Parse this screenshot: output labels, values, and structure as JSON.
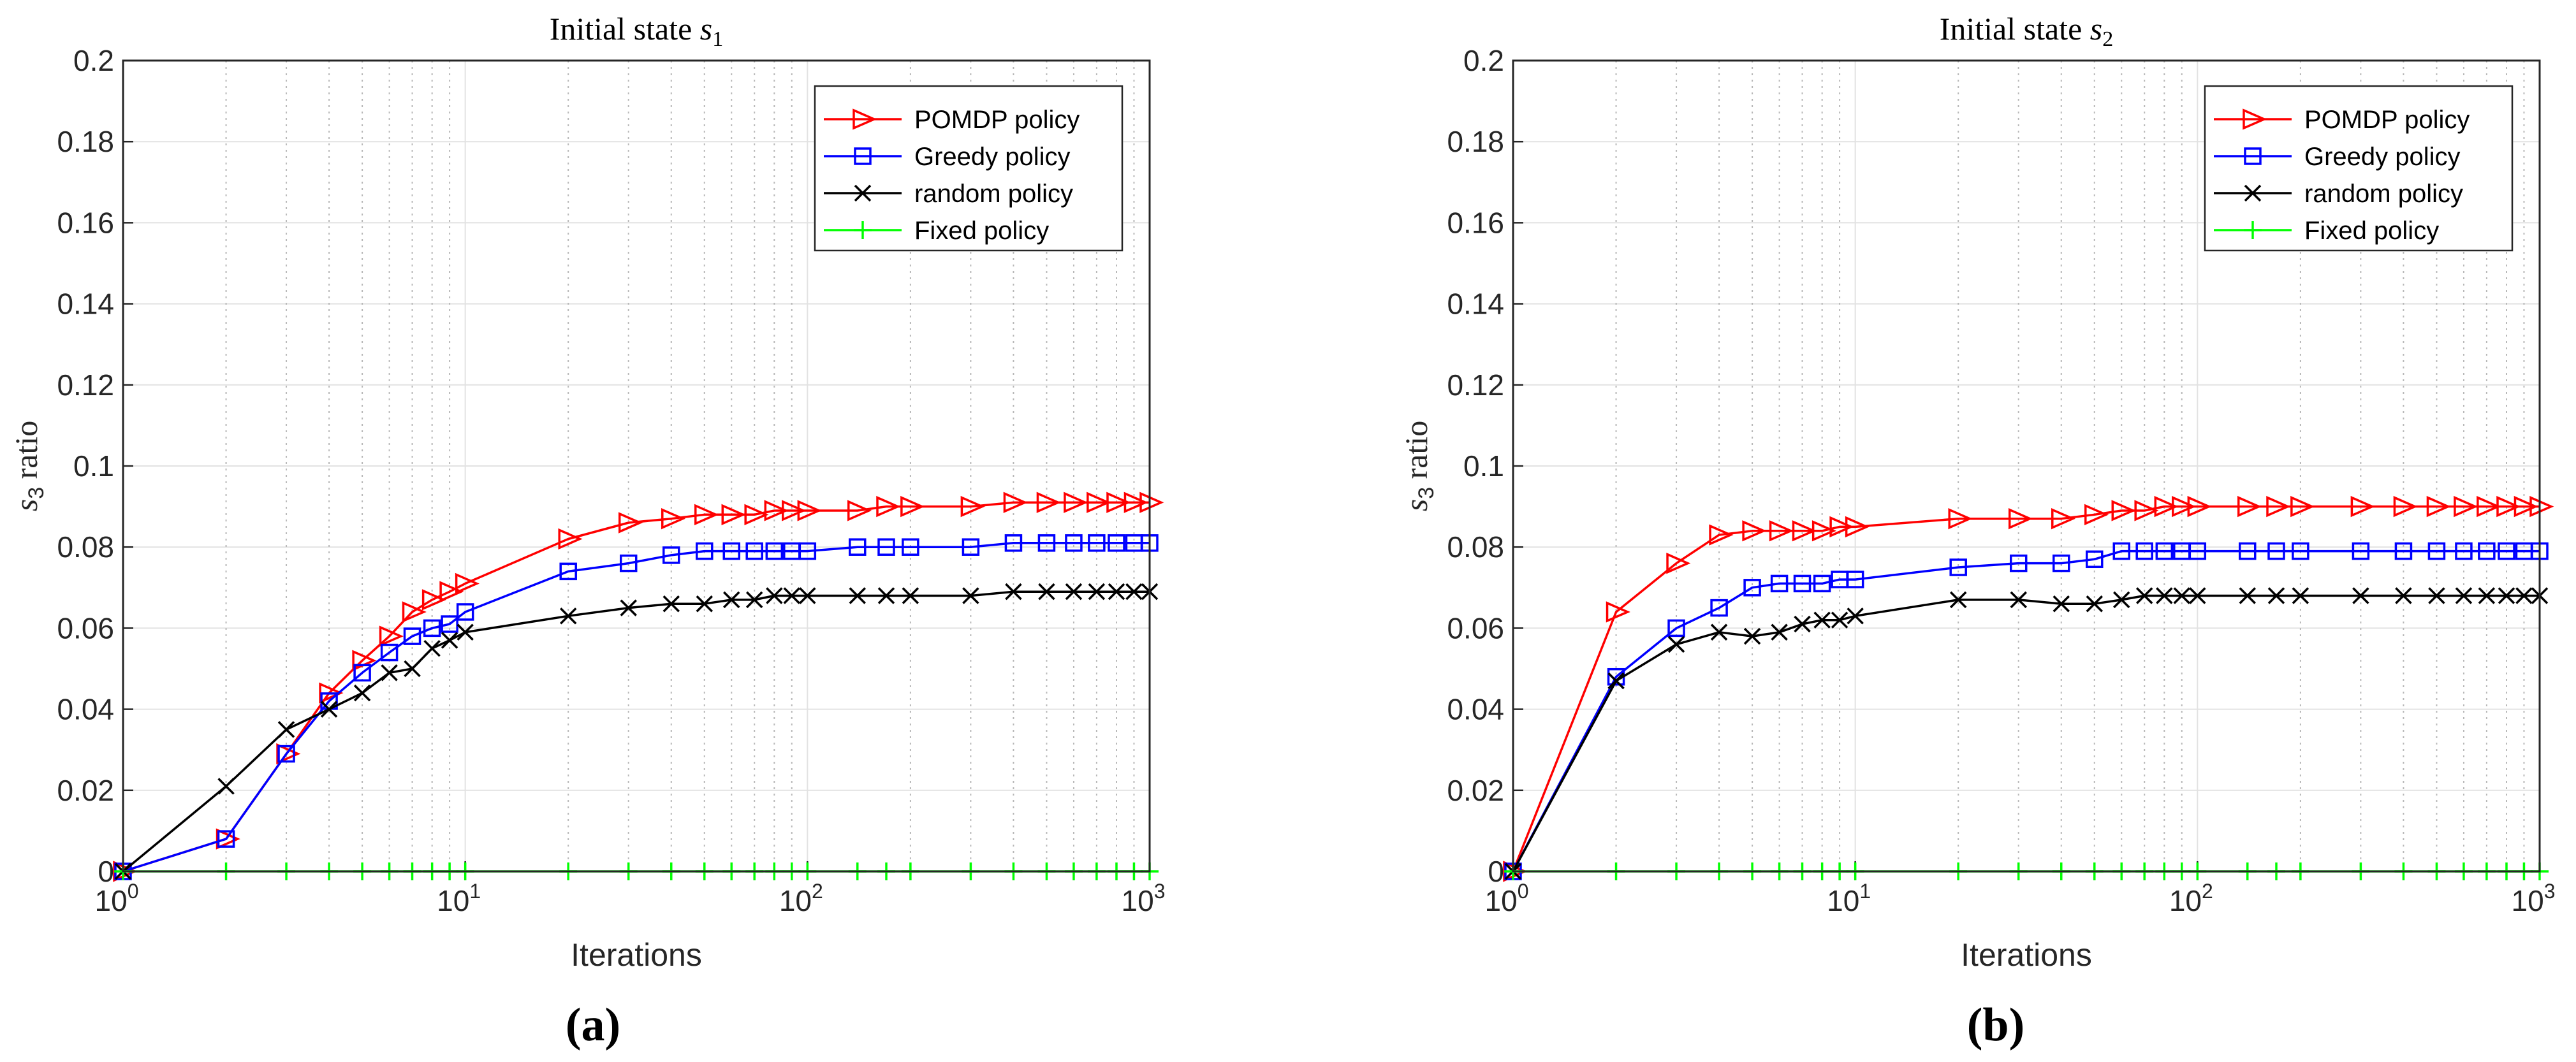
{
  "figure": {
    "ylabel_var": "s",
    "ylabel_sub": "3",
    "ylabel_rest": " ratio",
    "xlabel": "Iterations",
    "x_ticks": [
      {
        "base": "10",
        "exp": "0"
      },
      {
        "base": "10",
        "exp": "1"
      },
      {
        "base": "10",
        "exp": "2"
      },
      {
        "base": "10",
        "exp": "3"
      }
    ],
    "y_ticks": [
      "0",
      "0.02",
      "0.04",
      "0.06",
      "0.08",
      "0.1",
      "0.12",
      "0.14",
      "0.16",
      "0.18",
      "0.2"
    ],
    "legend": [
      "POMDP policy",
      "Greedy policy",
      "random policy",
      "Fixed policy"
    ],
    "colors": {
      "pomdp": "#ff0000",
      "greedy": "#0000ff",
      "random": "#000000",
      "fixed": "#00ff00"
    }
  },
  "chart_data": [
    {
      "type": "line",
      "panel": "(a)",
      "title_prefix": "Initial state ",
      "title_var": "s",
      "title_sub": "1",
      "xscale": "log",
      "xlim": [
        1,
        1000
      ],
      "ylim": [
        0,
        0.2
      ],
      "grid": true,
      "legend_position": "top-right",
      "x": [
        1,
        2,
        3,
        4,
        5,
        6,
        7,
        8,
        9,
        10,
        20,
        30,
        40,
        50,
        60,
        70,
        80,
        90,
        100,
        140,
        170,
        200,
        300,
        400,
        500,
        600,
        700,
        800,
        900,
        1000
      ],
      "series": [
        {
          "name": "POMDP policy",
          "marker": "triangle-right",
          "values": [
            0,
            0.008,
            0.029,
            0.044,
            0.052,
            0.058,
            0.064,
            0.067,
            0.069,
            0.071,
            0.082,
            0.086,
            0.087,
            0.088,
            0.088,
            0.088,
            0.089,
            0.089,
            0.089,
            0.089,
            0.09,
            0.09,
            0.09,
            0.091,
            0.091,
            0.091,
            0.091,
            0.091,
            0.091,
            0.091
          ]
        },
        {
          "name": "Greedy policy",
          "marker": "square",
          "values": [
            0,
            0.008,
            0.029,
            0.042,
            0.049,
            0.054,
            0.058,
            0.06,
            0.061,
            0.064,
            0.074,
            0.076,
            0.078,
            0.079,
            0.079,
            0.079,
            0.079,
            0.079,
            0.079,
            0.08,
            0.08,
            0.08,
            0.08,
            0.081,
            0.081,
            0.081,
            0.081,
            0.081,
            0.081,
            0.081
          ]
        },
        {
          "name": "random policy",
          "marker": "x",
          "values": [
            0,
            0.021,
            0.035,
            0.04,
            0.044,
            0.049,
            0.05,
            0.055,
            0.057,
            0.059,
            0.063,
            0.065,
            0.066,
            0.066,
            0.067,
            0.067,
            0.068,
            0.068,
            0.068,
            0.068,
            0.068,
            0.068,
            0.068,
            0.069,
            0.069,
            0.069,
            0.069,
            0.069,
            0.069,
            0.069
          ]
        },
        {
          "name": "Fixed policy",
          "marker": "plus",
          "values": [
            0,
            0,
            0,
            0,
            0,
            0,
            0,
            0,
            0,
            0,
            0,
            0,
            0,
            0,
            0,
            0,
            0,
            0,
            0,
            0,
            0,
            0,
            0,
            0,
            0,
            0,
            0,
            0,
            0,
            0
          ]
        }
      ]
    },
    {
      "type": "line",
      "panel": "(b)",
      "title_prefix": "Initial state ",
      "title_var": "s",
      "title_sub": "2",
      "xscale": "log",
      "xlim": [
        1,
        1000
      ],
      "ylim": [
        0,
        0.2
      ],
      "grid": true,
      "legend_position": "top-right",
      "x": [
        1,
        2,
        3,
        4,
        5,
        6,
        7,
        8,
        9,
        10,
        20,
        30,
        40,
        50,
        60,
        70,
        80,
        90,
        100,
        140,
        170,
        200,
        300,
        400,
        500,
        600,
        700,
        800,
        900,
        1000
      ],
      "series": [
        {
          "name": "POMDP policy",
          "marker": "triangle-right",
          "values": [
            0,
            0.064,
            0.076,
            0.083,
            0.084,
            0.084,
            0.084,
            0.084,
            0.085,
            0.085,
            0.087,
            0.087,
            0.087,
            0.088,
            0.089,
            0.089,
            0.09,
            0.09,
            0.09,
            0.09,
            0.09,
            0.09,
            0.09,
            0.09,
            0.09,
            0.09,
            0.09,
            0.09,
            0.09,
            0.09
          ]
        },
        {
          "name": "Greedy policy",
          "marker": "square",
          "values": [
            0,
            0.048,
            0.06,
            0.065,
            0.07,
            0.071,
            0.071,
            0.071,
            0.072,
            0.072,
            0.075,
            0.076,
            0.076,
            0.077,
            0.079,
            0.079,
            0.079,
            0.079,
            0.079,
            0.079,
            0.079,
            0.079,
            0.079,
            0.079,
            0.079,
            0.079,
            0.079,
            0.079,
            0.079,
            0.079
          ]
        },
        {
          "name": "random policy",
          "marker": "x",
          "values": [
            0,
            0.047,
            0.056,
            0.059,
            0.058,
            0.059,
            0.061,
            0.062,
            0.062,
            0.063,
            0.067,
            0.067,
            0.066,
            0.066,
            0.067,
            0.068,
            0.068,
            0.068,
            0.068,
            0.068,
            0.068,
            0.068,
            0.068,
            0.068,
            0.068,
            0.068,
            0.068,
            0.068,
            0.068,
            0.068
          ]
        },
        {
          "name": "Fixed policy",
          "marker": "plus",
          "values": [
            0,
            0,
            0,
            0,
            0,
            0,
            0,
            0,
            0,
            0,
            0,
            0,
            0,
            0,
            0,
            0,
            0,
            0,
            0,
            0,
            0,
            0,
            0,
            0,
            0,
            0,
            0,
            0,
            0,
            0
          ]
        }
      ]
    }
  ]
}
